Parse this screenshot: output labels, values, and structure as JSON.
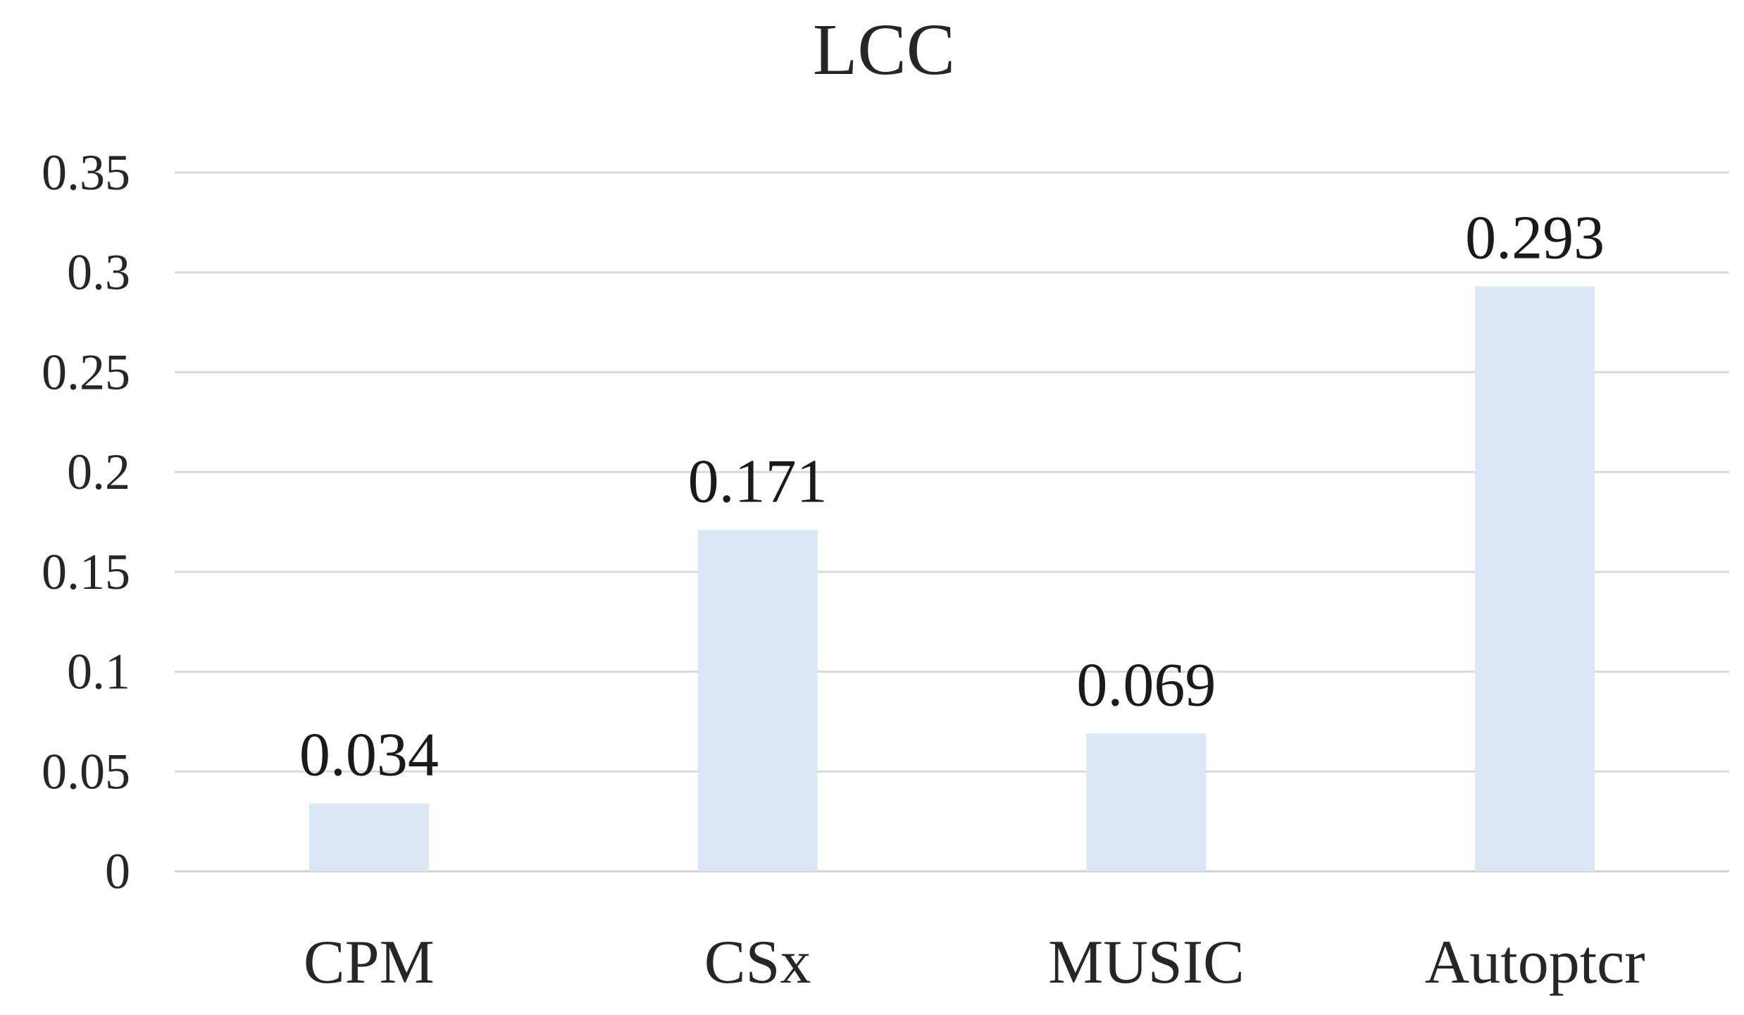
{
  "chart_data": {
    "type": "bar",
    "title": "LCC",
    "xlabel": "",
    "ylabel": "",
    "categories": [
      "CPM",
      "CSx",
      "MUSIC",
      "Autoptcr"
    ],
    "values": [
      0.034,
      0.171,
      0.069,
      0.293
    ],
    "value_labels": [
      "0.034",
      "0.171",
      "0.069",
      "0.293"
    ],
    "ylim": [
      0,
      0.35
    ],
    "yticks": [
      0,
      0.05,
      0.1,
      0.15,
      0.2,
      0.25,
      0.3,
      0.35
    ],
    "ytick_labels": [
      "0",
      "0.05",
      "0.1",
      "0.15",
      "0.2",
      "0.25",
      "0.3",
      "0.35"
    ],
    "grid": true,
    "legend": "none",
    "bar_color": "#dae8f5"
  }
}
